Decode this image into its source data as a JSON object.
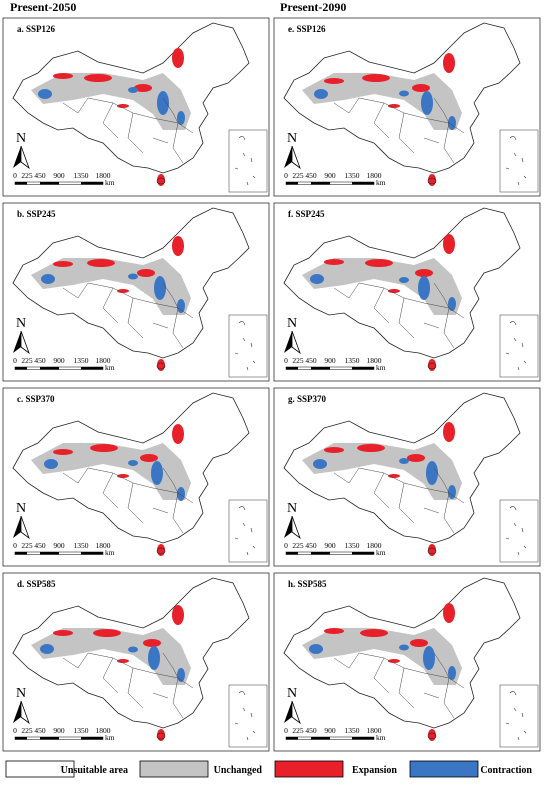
{
  "columns": [
    "Present-2050",
    "Present-2090"
  ],
  "panels": [
    {
      "label": "a. SSP126"
    },
    {
      "label": "e. SSP126"
    },
    {
      "label": "b. SSP245"
    },
    {
      "label": "f. SSP245"
    },
    {
      "label": "c. SSP370"
    },
    {
      "label": "g. SSP370"
    },
    {
      "label": "d. SSP585"
    },
    {
      "label": "h. SSP585"
    }
  ],
  "north": "N",
  "scale": {
    "ticks": [
      "0",
      "225",
      "450",
      "900",
      "1350",
      "1800"
    ],
    "unit": "km"
  },
  "legend": [
    {
      "label": "Unsuitable area",
      "color": "#ffffff"
    },
    {
      "label": "Unchanged",
      "color": "#c4c4c4"
    },
    {
      "label": "Expansion",
      "color": "#e8202a"
    },
    {
      "label": "Contraction",
      "color": "#3a76c4"
    }
  ]
}
